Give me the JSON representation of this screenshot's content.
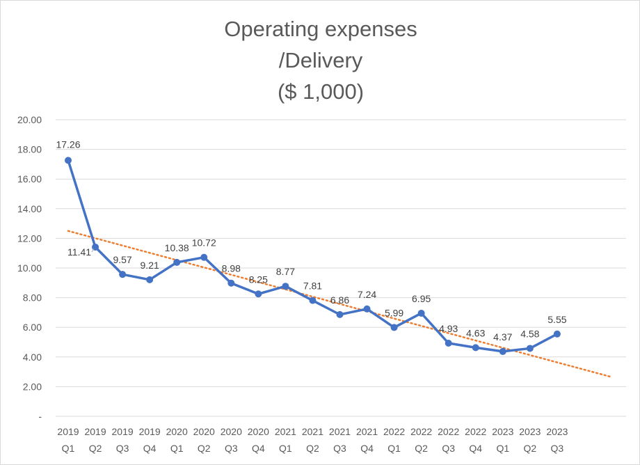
{
  "chart_data": {
    "type": "line",
    "title_lines": [
      "Operating expenses",
      "/Delivery",
      "($ 1,000)"
    ],
    "categories": [
      [
        "2019",
        "Q1"
      ],
      [
        "2019",
        "Q2"
      ],
      [
        "2019",
        "Q3"
      ],
      [
        "2019",
        "Q4"
      ],
      [
        "2020",
        "Q1"
      ],
      [
        "2020",
        "Q2"
      ],
      [
        "2020",
        "Q3"
      ],
      [
        "2020",
        "Q4"
      ],
      [
        "2021",
        "Q1"
      ],
      [
        "2021",
        "Q2"
      ],
      [
        "2021",
        "Q3"
      ],
      [
        "2021",
        "Q4"
      ],
      [
        "2022",
        "Q1"
      ],
      [
        "2022",
        "Q2"
      ],
      [
        "2022",
        "Q3"
      ],
      [
        "2022",
        "Q4"
      ],
      [
        "2023",
        "Q1"
      ],
      [
        "2023",
        "Q2"
      ],
      [
        "2023",
        "Q3"
      ]
    ],
    "series": [
      {
        "name": "Operating expenses/Delivery",
        "color": "#4472C4",
        "values": [
          17.26,
          11.41,
          9.57,
          9.21,
          10.38,
          10.72,
          8.98,
          8.25,
          8.77,
          7.81,
          6.86,
          7.24,
          5.99,
          6.95,
          4.93,
          4.63,
          4.37,
          4.58,
          5.55
        ],
        "labels": [
          "17.26",
          "11.41",
          "9.57",
          "9.21",
          "10.38",
          "10.72",
          "8.98",
          "8.25",
          "8.77",
          "7.81",
          "6.86",
          "7.24",
          "5.99",
          "6.95",
          "4.93",
          "4.63",
          "4.37",
          "4.58",
          "5.55"
        ]
      }
    ],
    "trendline": {
      "type": "linear",
      "color": "#ED7D31",
      "start_value": 12.5,
      "end_value": 2.65,
      "forward_periods": 2
    },
    "ylim": [
      0,
      20
    ],
    "yticks": [
      "-",
      "2.00",
      "4.00",
      "6.00",
      "8.00",
      "10.00",
      "12.00",
      "14.00",
      "16.00",
      "18.00",
      "20.00"
    ],
    "xlabel": "",
    "ylabel": "",
    "grid": true,
    "legend": "none"
  }
}
